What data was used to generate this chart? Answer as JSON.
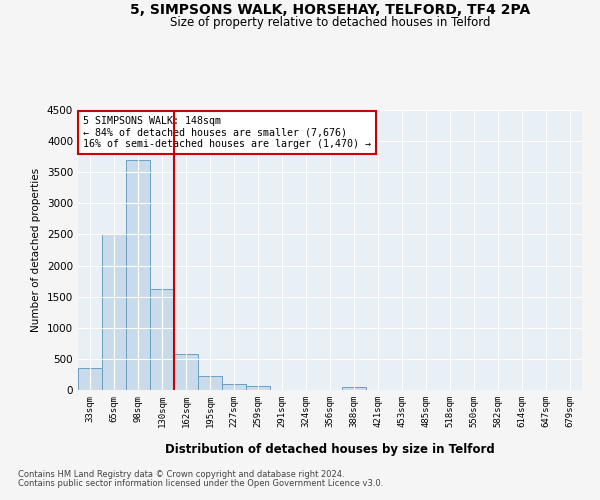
{
  "title": "5, SIMPSONS WALK, HORSEHAY, TELFORD, TF4 2PA",
  "subtitle": "Size of property relative to detached houses in Telford",
  "xlabel": "Distribution of detached houses by size in Telford",
  "ylabel": "Number of detached properties",
  "categories": [
    "33sqm",
    "65sqm",
    "98sqm",
    "130sqm",
    "162sqm",
    "195sqm",
    "227sqm",
    "259sqm",
    "291sqm",
    "324sqm",
    "356sqm",
    "388sqm",
    "421sqm",
    "453sqm",
    "485sqm",
    "518sqm",
    "550sqm",
    "582sqm",
    "614sqm",
    "647sqm",
    "679sqm"
  ],
  "values": [
    350,
    2500,
    3700,
    1620,
    580,
    220,
    100,
    60,
    0,
    0,
    0,
    55,
    0,
    0,
    0,
    0,
    0,
    0,
    0,
    0,
    0
  ],
  "bar_color": "#c9daea",
  "bar_edge_color": "#6a9fc0",
  "vline_color": "#cc0000",
  "annotation_line1": "5 SIMPSONS WALK: 148sqm",
  "annotation_line2": "← 84% of detached houses are smaller (7,676)",
  "annotation_line3": "16% of semi-detached houses are larger (1,470) →",
  "annotation_box_color": "#cc0000",
  "ylim": [
    0,
    4500
  ],
  "yticks": [
    0,
    500,
    1000,
    1500,
    2000,
    2500,
    3000,
    3500,
    4000,
    4500
  ],
  "vline_x": 3.5,
  "footer_line1": "Contains HM Land Registry data © Crown copyright and database right 2024.",
  "footer_line2": "Contains public sector information licensed under the Open Government Licence v3.0.",
  "fig_bg": "#f5f5f5",
  "axes_bg": "#e8eff5"
}
